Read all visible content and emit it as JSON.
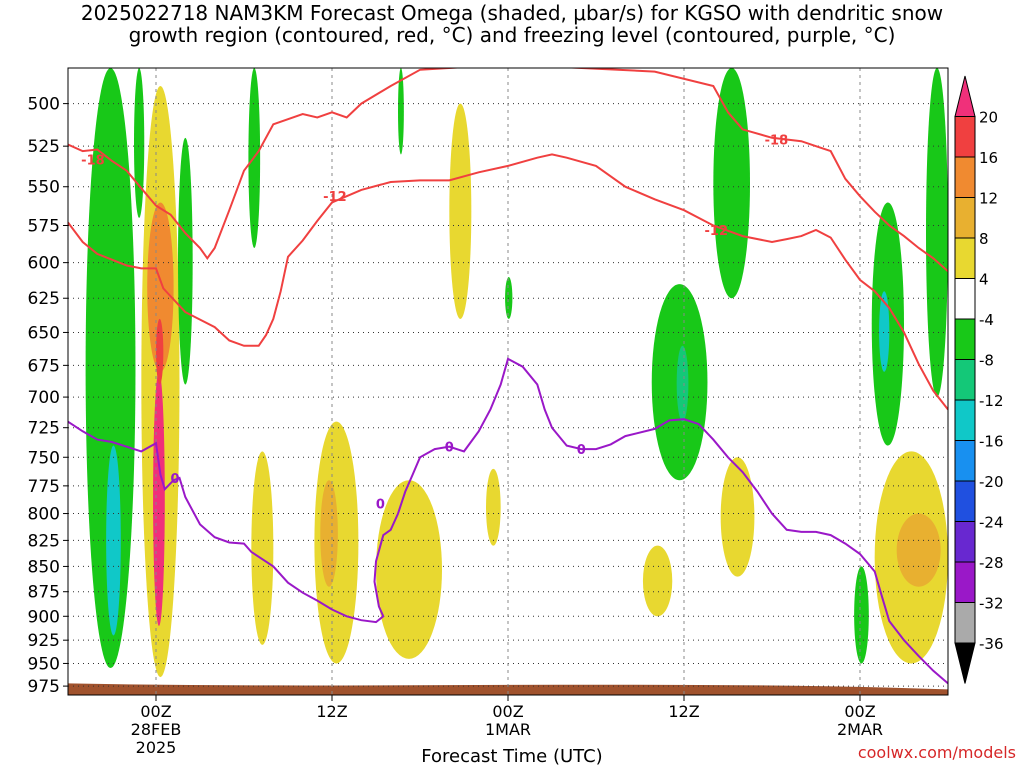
{
  "chart_data": {
    "type": "heatmap",
    "title": "2025022718 NAM3KM Forecast Omega (shaded, μbar/s) for KGSO with dendritic snow",
    "subtitle": "growth region (contoured, red, °C) and freezing level (contoured, purple, °C)",
    "xlabel": "Forecast Time (UTC)",
    "ylabel": "",
    "x_ticks": [
      {
        "value": 6,
        "lines": [
          "00Z",
          "28FEB",
          "2025"
        ]
      },
      {
        "value": 18,
        "lines": [
          "12Z"
        ]
      },
      {
        "value": 30,
        "lines": [
          "00Z",
          "1MAR"
        ]
      },
      {
        "value": 42,
        "lines": [
          "12Z"
        ]
      },
      {
        "value": 54,
        "lines": [
          "00Z",
          "2MAR"
        ]
      }
    ],
    "xlim": [
      0,
      60
    ],
    "y_ticks": [
      500,
      525,
      550,
      575,
      600,
      625,
      650,
      675,
      700,
      725,
      750,
      775,
      800,
      825,
      850,
      875,
      900,
      925,
      950,
      975
    ],
    "ylim": [
      480,
      985
    ],
    "y_scale": "log",
    "grid": true,
    "colorbar": {
      "labels": [
        "20",
        "16",
        "12",
        "8",
        "4",
        "-4",
        "-8",
        "-12",
        "-16",
        "-20",
        "-24",
        "-28",
        "-32",
        "-36"
      ],
      "colors": [
        "#f0307a",
        "#f04040",
        "#f08a30",
        "#e8b030",
        "#e8d830",
        "#ffffff",
        "#18c818",
        "#14c878",
        "#10c8c8",
        "#1890f0",
        "#2050e0",
        "#6828d0",
        "#9a18c8",
        "#aaaaaa",
        "#000000"
      ]
    },
    "snow_growth_contours": [
      {
        "label": "-18",
        "color": "#f04040",
        "points": [
          [
            0,
            524
          ],
          [
            1,
            528
          ],
          [
            2,
            527
          ],
          [
            3,
            534
          ],
          [
            4,
            540
          ],
          [
            5,
            551
          ],
          [
            6,
            562
          ],
          [
            7,
            568
          ],
          [
            8,
            580
          ],
          [
            9,
            590
          ],
          [
            9.5,
            597
          ],
          [
            10,
            590
          ],
          [
            11,
            565
          ],
          [
            12,
            540
          ],
          [
            13,
            528
          ],
          [
            14,
            512
          ],
          [
            16,
            506
          ],
          [
            17,
            508
          ],
          [
            18,
            505
          ],
          [
            19,
            508
          ],
          [
            20,
            500
          ],
          [
            22,
            490
          ],
          [
            24,
            481
          ],
          [
            30,
            478
          ],
          [
            40,
            482
          ],
          [
            44,
            490
          ],
          [
            45,
            505
          ],
          [
            46,
            515
          ],
          [
            48,
            520
          ],
          [
            50,
            522
          ],
          [
            51,
            525
          ],
          [
            52,
            528
          ],
          [
            53,
            545
          ],
          [
            54,
            556
          ],
          [
            55,
            566
          ],
          [
            56,
            575
          ],
          [
            57,
            582
          ],
          [
            58,
            590
          ],
          [
            59,
            597
          ],
          [
            60,
            606
          ]
        ]
      },
      {
        "label": "-12",
        "color": "#f04040",
        "points": [
          [
            0,
            573
          ],
          [
            1,
            586
          ],
          [
            2,
            594
          ],
          [
            3,
            598
          ],
          [
            4,
            602
          ],
          [
            5,
            604
          ],
          [
            6,
            604
          ],
          [
            6.5,
            618
          ],
          [
            8,
            635
          ],
          [
            10,
            646
          ],
          [
            11,
            656
          ],
          [
            12,
            660
          ],
          [
            13,
            660
          ],
          [
            13.5,
            652
          ],
          [
            14,
            640
          ],
          [
            14.5,
            620
          ],
          [
            15,
            596
          ],
          [
            16,
            585
          ],
          [
            17,
            572
          ],
          [
            18,
            560
          ],
          [
            19,
            556
          ],
          [
            20,
            552
          ],
          [
            22,
            547
          ],
          [
            24,
            546
          ],
          [
            26,
            546
          ],
          [
            28,
            541
          ],
          [
            30,
            537
          ],
          [
            32,
            532
          ],
          [
            33,
            530
          ],
          [
            34,
            532
          ],
          [
            36,
            537
          ],
          [
            38,
            550
          ],
          [
            40,
            558
          ],
          [
            42,
            565
          ],
          [
            44,
            575
          ],
          [
            46,
            582
          ],
          [
            48,
            586
          ],
          [
            49,
            584
          ],
          [
            50,
            582
          ],
          [
            51,
            578
          ],
          [
            52,
            583
          ],
          [
            53,
            598
          ],
          [
            54,
            612
          ],
          [
            55,
            620
          ],
          [
            56,
            632
          ],
          [
            57,
            650
          ],
          [
            58,
            674
          ],
          [
            59,
            695
          ],
          [
            60,
            710
          ]
        ]
      }
    ],
    "freezing_level_contour": {
      "label": "0",
      "color": "#9a18c8",
      "points": [
        [
          0,
          720
        ],
        [
          1,
          728
        ],
        [
          2,
          735
        ],
        [
          3,
          737
        ],
        [
          4,
          741
        ],
        [
          5,
          745
        ],
        [
          6,
          738
        ],
        [
          6.3,
          765
        ],
        [
          6.6,
          778
        ],
        [
          7.2,
          770
        ],
        [
          7.6,
          768
        ],
        [
          8,
          785
        ],
        [
          9,
          810
        ],
        [
          10,
          822
        ],
        [
          11,
          827
        ],
        [
          12,
          828
        ],
        [
          12.5,
          836
        ],
        [
          14,
          850
        ],
        [
          15,
          866
        ],
        [
          16,
          876
        ],
        [
          17,
          884
        ],
        [
          18,
          893
        ],
        [
          19,
          900
        ],
        [
          20,
          904
        ],
        [
          21,
          906
        ],
        [
          21.5,
          900
        ],
        [
          21.2,
          890
        ],
        [
          20.9,
          865
        ],
        [
          21,
          845
        ],
        [
          21.5,
          820
        ],
        [
          22,
          815
        ],
        [
          22.5,
          800
        ],
        [
          23,
          780
        ],
        [
          23.5,
          765
        ],
        [
          24,
          750
        ],
        [
          25,
          743
        ],
        [
          26,
          741
        ],
        [
          27,
          745
        ],
        [
          28,
          728
        ],
        [
          28.8,
          710
        ],
        [
          29.5,
          690
        ],
        [
          30,
          670
        ],
        [
          31,
          676
        ],
        [
          32,
          690
        ],
        [
          32.5,
          710
        ],
        [
          33,
          725
        ],
        [
          34,
          740
        ],
        [
          35,
          743
        ],
        [
          36,
          743
        ],
        [
          37,
          739
        ],
        [
          38,
          732
        ],
        [
          40,
          726
        ],
        [
          41,
          719
        ],
        [
          42,
          718
        ],
        [
          43,
          722
        ],
        [
          44,
          735
        ],
        [
          45,
          750
        ],
        [
          46,
          763
        ],
        [
          47,
          780
        ],
        [
          48,
          800
        ],
        [
          49,
          815
        ],
        [
          50,
          817
        ],
        [
          51,
          817
        ],
        [
          52,
          820
        ],
        [
          53,
          828
        ],
        [
          54,
          838
        ],
        [
          55,
          855
        ],
        [
          55.5,
          880
        ],
        [
          56,
          905
        ],
        [
          57,
          925
        ],
        [
          58,
          942
        ],
        [
          59,
          958
        ],
        [
          60,
          972
        ]
      ]
    },
    "shaded_regions": [
      {
        "name": "green-left-column",
        "value": -6,
        "x_range": [
          1.2,
          4.6
        ],
        "p_range": [
          480,
          955
        ]
      },
      {
        "name": "cyan-left-core",
        "value": -14,
        "x_range": [
          2.6,
          3.6
        ],
        "p_range": [
          740,
          920
        ]
      },
      {
        "name": "green-upper-strip",
        "value": -6,
        "x_range": [
          4.5,
          5.2
        ],
        "p_range": [
          480,
          570
        ]
      },
      {
        "name": "yellow-lift-column",
        "value": 6,
        "x_range": [
          5.0,
          7.6
        ],
        "p_range": [
          490,
          965
        ]
      },
      {
        "name": "orange-lift-core",
        "value": 12,
        "x_range": [
          5.4,
          7.2
        ],
        "p_range": [
          560,
          680
        ]
      },
      {
        "name": "magenta-lift-max",
        "value": 20,
        "x_range": [
          5.8,
          6.6
        ],
        "p_range": [
          680,
          910
        ]
      },
      {
        "name": "red-lift-core",
        "value": 18,
        "x_range": [
          6.0,
          6.5
        ],
        "p_range": [
          640,
          690
        ]
      },
      {
        "name": "green-strip-a",
        "value": -6,
        "x_range": [
          7.5,
          8.5
        ],
        "p_range": [
          520,
          690
        ]
      },
      {
        "name": "green-strip-b",
        "value": -6,
        "x_range": [
          12.3,
          13.1
        ],
        "p_range": [
          480,
          590
        ]
      },
      {
        "name": "green-strip-c",
        "value": -6,
        "x_range": [
          22.5,
          22.9
        ],
        "p_range": [
          480,
          530
        ]
      },
      {
        "name": "yellow-mid-a",
        "value": 6,
        "x_range": [
          12.5,
          14.0
        ],
        "p_range": [
          745,
          930
        ]
      },
      {
        "name": "yellow-mid-b",
        "value": 6,
        "x_range": [
          16.8,
          19.8
        ],
        "p_range": [
          720,
          950
        ]
      },
      {
        "name": "orange-mid-b",
        "value": 10,
        "x_range": [
          17.2,
          18.4
        ],
        "p_range": [
          770,
          870
        ]
      },
      {
        "name": "yellow-mid-c",
        "value": 6,
        "x_range": [
          21.0,
          25.5
        ],
        "p_range": [
          770,
          945
        ]
      },
      {
        "name": "yellow-upper-d",
        "value": 6,
        "x_range": [
          26.0,
          27.5
        ],
        "p_range": [
          500,
          640
        ]
      },
      {
        "name": "yellow-mid-e",
        "value": 6,
        "x_range": [
          28.5,
          29.5
        ],
        "p_range": [
          760,
          830
        ]
      },
      {
        "name": "green-small-f",
        "value": -6,
        "x_range": [
          29.8,
          30.3
        ],
        "p_range": [
          610,
          640
        ]
      },
      {
        "name": "yellow-low-g",
        "value": 6,
        "x_range": [
          39.2,
          41.2
        ],
        "p_range": [
          830,
          900
        ]
      },
      {
        "name": "green-mid-h",
        "value": -6,
        "x_range": [
          39.8,
          43.6
        ],
        "p_range": [
          615,
          770
        ]
      },
      {
        "name": "cyan-mid-h",
        "value": -10,
        "x_range": [
          41.5,
          42.3
        ],
        "p_range": [
          660,
          720
        ]
      },
      {
        "name": "green-upper-i",
        "value": -6,
        "x_range": [
          44.0,
          46.5
        ],
        "p_range": [
          480,
          625
        ]
      },
      {
        "name": "yellow-low-j",
        "value": 6,
        "x_range": [
          44.5,
          46.8
        ],
        "p_range": [
          750,
          860
        ]
      },
      {
        "name": "green-low-k",
        "value": -6,
        "x_range": [
          53.6,
          54.6
        ],
        "p_range": [
          850,
          950
        ]
      },
      {
        "name": "green-right-l",
        "value": -6,
        "x_range": [
          54.8,
          57.0
        ],
        "p_range": [
          560,
          740
        ]
      },
      {
        "name": "cyan-right-l",
        "value": -12,
        "x_range": [
          55.3,
          56.0
        ],
        "p_range": [
          620,
          680
        ]
      },
      {
        "name": "yellow-right-m",
        "value": 6,
        "x_range": [
          55.0,
          60.0
        ],
        "p_range": [
          745,
          950
        ]
      },
      {
        "name": "orange-right-m",
        "value": 10,
        "x_range": [
          56.5,
          59.5
        ],
        "p_range": [
          800,
          870
        ]
      },
      {
        "name": "green-right-n",
        "value": -6,
        "x_range": [
          58.5,
          60.0
        ],
        "p_range": [
          480,
          700
        ]
      }
    ],
    "ground": {
      "color": "#a0522d",
      "p_top": 972
    }
  },
  "footer": {
    "credit": "coolwx.com/models"
  }
}
